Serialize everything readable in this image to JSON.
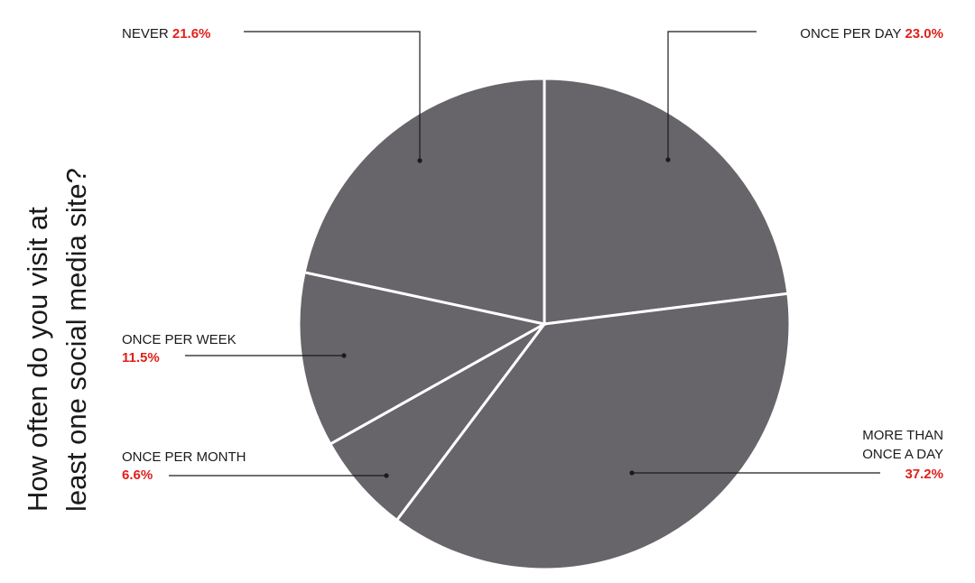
{
  "chart_data": {
    "type": "pie",
    "title_lines": [
      "How often do you visit at",
      "least one social media site?"
    ],
    "slices": [
      {
        "label": "ONCE PER DAY",
        "value": 23.0,
        "value_text": "23.0%"
      },
      {
        "label": "MORE THAN ONCE A DAY",
        "label_lines": [
          "MORE THAN",
          "ONCE A DAY"
        ],
        "value": 37.2,
        "value_text": "37.2%"
      },
      {
        "label": "ONCE PER MONTH",
        "value": 6.6,
        "value_text": "6.6%"
      },
      {
        "label": "ONCE PER WEEK",
        "value": 11.5,
        "value_text": "11.5%"
      },
      {
        "label": "NEVER",
        "value": 21.6,
        "value_text": "21.6%"
      }
    ],
    "colors": {
      "slice": "#676569",
      "separator": "#ffffff",
      "value_text": "#e0201b",
      "text": "#1a1a1a"
    }
  }
}
